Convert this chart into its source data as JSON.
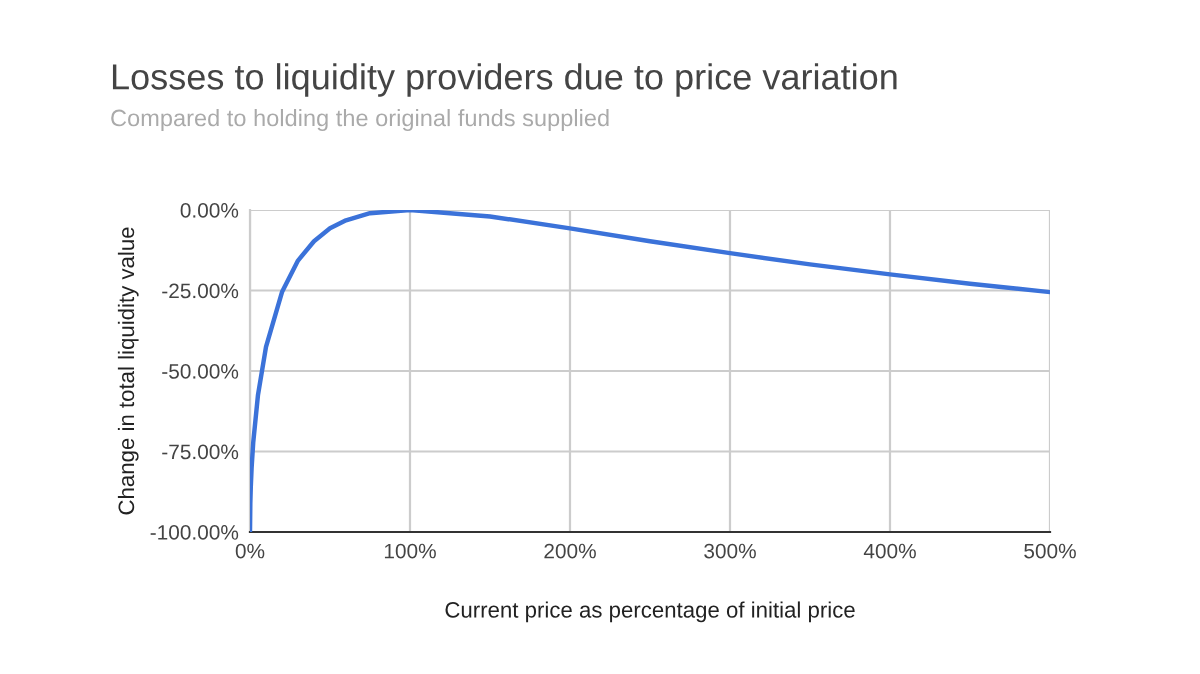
{
  "chart_data": {
    "type": "line",
    "title": "Losses to liquidity providers due to price variation",
    "subtitle": "Compared to holding the original funds supplied",
    "xlabel": "Current price as percentage of initial price",
    "ylabel": "Change in total liquidity value",
    "series": [
      {
        "color": "#3b72d9",
        "x": [
          0,
          0.2,
          0.5,
          1,
          2,
          5,
          10,
          20,
          30,
          40,
          50,
          60,
          75,
          100,
          150,
          200,
          250,
          300,
          350,
          400,
          450,
          500
        ],
        "values": [
          -100,
          -91.1,
          -85.9,
          -80.2,
          -72.3,
          -57.4,
          -42.5,
          -25.5,
          -15.7,
          -9.7,
          -5.7,
          -3.2,
          -1.0,
          0,
          -2.0,
          -5.7,
          -9.7,
          -13.4,
          -16.9,
          -20.0,
          -22.9,
          -25.5
        ]
      }
    ],
    "xlim": [
      0,
      500
    ],
    "ylim": [
      -100,
      0
    ],
    "xticks": [
      {
        "value": 0,
        "label": "0%"
      },
      {
        "value": 100,
        "label": "100%"
      },
      {
        "value": 200,
        "label": "200%"
      },
      {
        "value": 300,
        "label": "300%"
      },
      {
        "value": 400,
        "label": "400%"
      },
      {
        "value": 500,
        "label": "500%"
      }
    ],
    "yticks": [
      {
        "value": -100,
        "label": "-100.00%"
      },
      {
        "value": -75,
        "label": "-75.00%"
      },
      {
        "value": -50,
        "label": "-50.00%"
      },
      {
        "value": -25,
        "label": "-25.00%"
      },
      {
        "value": 0,
        "label": "0.00%"
      }
    ],
    "grid": true,
    "line_style": "solid",
    "marker": "none"
  }
}
